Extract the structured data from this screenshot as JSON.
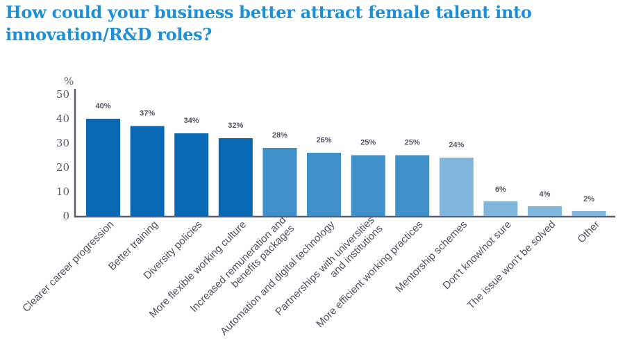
{
  "chart_data": {
    "type": "bar",
    "title_line1": "How could your business better attract female talent into",
    "title_line2": "innovation/R&D roles?",
    "ylabel": "%",
    "ylim": [
      0,
      50
    ],
    "yticks": [
      "0",
      "10",
      "20",
      "30",
      "40",
      "50"
    ],
    "grid": false,
    "categories": [
      [
        "Clearer career progression"
      ],
      [
        "Better training"
      ],
      [
        "Diversity policies"
      ],
      [
        "More flexible working culture"
      ],
      [
        "Increased remuneration and",
        "benefits packages"
      ],
      [
        "Automation and digital technology"
      ],
      [
        "Partnerships with universities",
        "and institutions"
      ],
      [
        "More efficient working practices"
      ],
      [
        "Mentorship schemes"
      ],
      [
        "Don't know/not sure"
      ],
      [
        "The issue won't be solved"
      ],
      [
        "Other"
      ]
    ],
    "values": [
      40,
      37,
      34,
      32,
      28,
      26,
      25,
      25,
      24,
      6,
      4,
      2
    ],
    "data_labels": [
      "40%",
      "37%",
      "34%",
      "32%",
      "28%",
      "26%",
      "25%",
      "25%",
      "24%",
      "6%",
      "4%",
      "2%"
    ],
    "bar_colors": [
      "#0868b3",
      "#0868b3",
      "#0868b3",
      "#0868b3",
      "#3f90c9",
      "#3f90c9",
      "#3f90c9",
      "#3f90c9",
      "#80b6dc",
      "#80b6dc",
      "#80b6dc",
      "#80b6dc"
    ],
    "axis_color": "#5b5e6e"
  }
}
